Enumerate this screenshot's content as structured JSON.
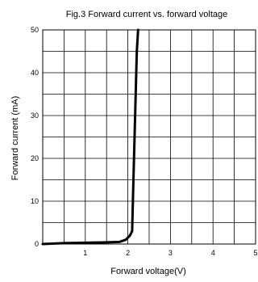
{
  "chart_data": {
    "type": "line",
    "title": "Fig.3 Forward current vs. forward voltage",
    "xlabel": "Forward voltage(V)",
    "ylabel": "Forward current (mA)",
    "xlim": [
      0,
      5
    ],
    "ylim": [
      0,
      50
    ],
    "x_ticks": [
      "1",
      "2",
      "3",
      "4",
      "5"
    ],
    "y_ticks": [
      "0",
      "10",
      "20",
      "30",
      "40",
      "50"
    ],
    "grid": true,
    "series": [
      {
        "values": [
          [
            0,
            0
          ],
          [
            0.5,
            0.2
          ],
          [
            1.0,
            0.3
          ],
          [
            1.5,
            0.4
          ],
          [
            1.8,
            0.5
          ],
          [
            1.95,
            1.0
          ],
          [
            2.05,
            2.0
          ],
          [
            2.1,
            3.0
          ],
          [
            2.13,
            15
          ],
          [
            2.17,
            30
          ],
          [
            2.21,
            45
          ],
          [
            2.24,
            50
          ]
        ]
      }
    ]
  }
}
